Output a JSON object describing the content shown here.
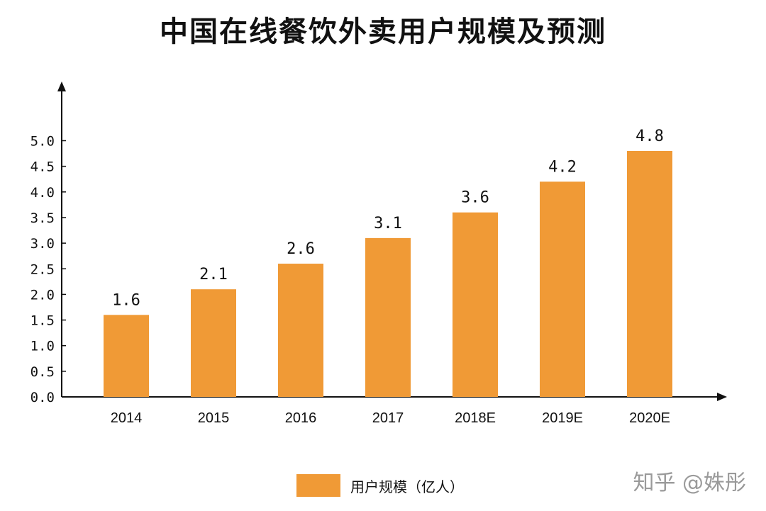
{
  "watermark": "知乎 @姝彤",
  "chart_data": {
    "type": "bar",
    "title": "中国在线餐饮外卖用户规模及预测",
    "categories": [
      "2014",
      "2015",
      "2016",
      "2017",
      "2018E",
      "2019E",
      "2020E"
    ],
    "series": [
      {
        "name": "用户规模（亿人）",
        "values": [
          1.6,
          2.1,
          2.6,
          3.1,
          3.6,
          4.2,
          4.8
        ],
        "color": "#F09A36"
      }
    ],
    "data_labels": [
      "1.6",
      "2.1",
      "2.6",
      "3.1",
      "3.6",
      "4.2",
      "4.8"
    ],
    "yticks": [
      "0.0",
      "0.5",
      "1.0",
      "1.5",
      "2.0",
      "2.5",
      "3.0",
      "3.5",
      "4.0",
      "4.5",
      "5.0"
    ],
    "ylim": [
      0,
      5.0
    ],
    "grid": false,
    "legend_position": "bottom-center",
    "xlabel": "",
    "ylabel": ""
  }
}
